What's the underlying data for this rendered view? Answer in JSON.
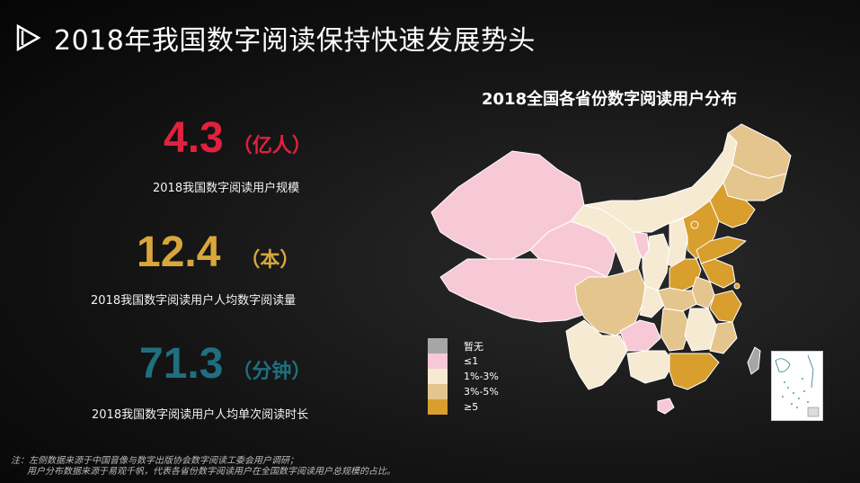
{
  "header": {
    "title": "2018年我国数字阅读保持快速发展势头",
    "icon": "play-triangle-icon"
  },
  "stats": [
    {
      "value": "4.3",
      "unit": "（亿人）",
      "label": "2018我国数字阅读用户规模",
      "color": "#e0213f"
    },
    {
      "value": "12.4",
      "unit": "（本）",
      "label": "2018我国数字阅读用户人均数字阅读量",
      "color": "#d8a73c"
    },
    {
      "value": "71.3",
      "unit": "（分钟）",
      "label": "2018我国数字阅读用户人均单次阅读时长",
      "color": "#1f6f80"
    }
  ],
  "map": {
    "title": "2018全国各省份数字阅读用户分布",
    "legend": [
      {
        "label": "暂无",
        "color": "#a6a6a6"
      },
      {
        "label": "≤1",
        "color": "#f7c9d6"
      },
      {
        "label": "1%-3%",
        "color": "#f6ead2"
      },
      {
        "label": "3%-5%",
        "color": "#e5c58e"
      },
      {
        "label": "≥5",
        "color": "#d89e2e"
      }
    ]
  },
  "notes": {
    "line1": "注：左侧数据来源于中国音像与数字出版协会数字阅读工委会用户调研；",
    "line2": "用户分布数据来源于易观千帆，代表各省份数字阅读用户在全国数字阅读用户总规模的占比。"
  }
}
